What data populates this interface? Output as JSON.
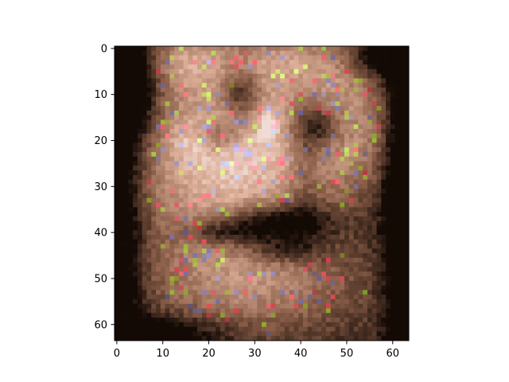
{
  "chart_data": {
    "type": "heatmap",
    "title": "",
    "xlabel": "",
    "ylabel": "",
    "x_range": [
      -0.5,
      63.5
    ],
    "y_range": [
      63.5,
      -0.5
    ],
    "y_inverted": true,
    "grid": false,
    "x_ticks": [
      0,
      10,
      20,
      30,
      40,
      50,
      60
    ],
    "y_ticks": [
      0,
      10,
      20,
      30,
      40,
      50,
      60
    ],
    "x_tick_labels": [
      "0",
      "10",
      "20",
      "30",
      "40",
      "50",
      "60"
    ],
    "y_tick_labels": [
      "0",
      "10",
      "20",
      "30",
      "40",
      "50",
      "60"
    ],
    "image_size": [
      64,
      64
    ],
    "image_description": "64x64 RGB image rendered with imshow: blurry sepia-toned face-like pattern with dark borders and scattered colored noise pixels",
    "palette": {
      "dark": "#140a05",
      "mid": "#8a5e48",
      "light": "#dcae98",
      "highlight": "#f0dcd4"
    }
  }
}
